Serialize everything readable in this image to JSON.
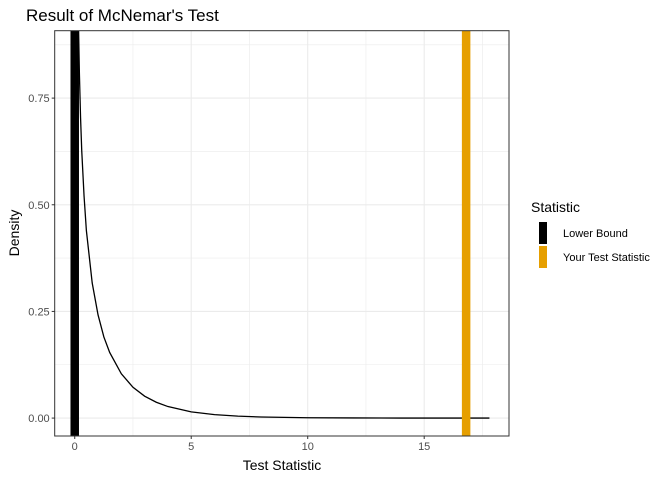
{
  "chart_data": {
    "type": "line",
    "title": "Result of McNemar's Test",
    "xlabel": "Test Statistic",
    "ylabel": "Density",
    "xlim": [
      -0.86,
      18.64
    ],
    "ylim": [
      -0.042,
      0.908
    ],
    "x_ticks": [
      0,
      5,
      10,
      15
    ],
    "x_tick_labels": [
      "0",
      "5",
      "10",
      "15"
    ],
    "y_ticks": [
      0,
      0.25,
      0.5,
      0.75
    ],
    "y_tick_labels": [
      "0.00",
      "0.25",
      "0.50",
      "0.75"
    ],
    "grid": true,
    "density_curve": {
      "x": [
        0.1,
        0.15,
        0.2,
        0.25,
        0.3,
        0.4,
        0.5,
        0.75,
        1,
        1.25,
        1.5,
        2,
        2.5,
        3,
        3.5,
        4,
        5,
        6,
        7,
        8,
        10,
        12,
        14,
        16,
        17.8
      ],
      "y": [
        1.2,
        0.9556,
        0.8071,
        0.7041,
        0.627,
        0.5205,
        0.4394,
        0.3166,
        0.242,
        0.1902,
        0.1539,
        0.1038,
        0.0723,
        0.0514,
        0.0371,
        0.027,
        0.0146,
        0.0081,
        0.0045,
        0.0026,
        0.00085,
        0.00029,
        0.0001,
        3e-05,
        1e-05
      ],
      "color": "#000000"
    },
    "vlines": [
      {
        "name": "Lower Bound",
        "x": 0,
        "color": "#000000"
      },
      {
        "name": "Your Test Statistic",
        "x": 16.8,
        "color": "#E69F00"
      }
    ],
    "legend": {
      "title": "Statistic",
      "position": "right",
      "entries": [
        "Lower Bound",
        "Your Test Statistic"
      ]
    }
  }
}
